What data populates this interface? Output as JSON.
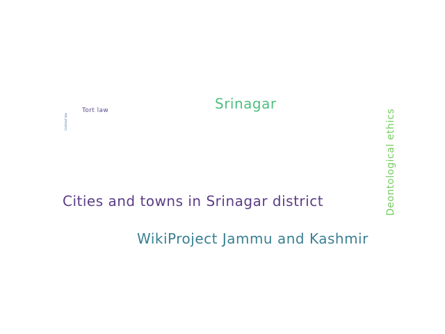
{
  "word_cloud": {
    "words": [
      {
        "text": "Cities and towns in Srinagar district",
        "color": "#5b3d85"
      },
      {
        "text": "WikiProject Jammu and Kashmir",
        "color": "#3a7f92"
      },
      {
        "text": "Srinagar",
        "color": "#4dbf81"
      },
      {
        "text": "Deontological ethics",
        "color": "#73cc5e",
        "orientation": "vertical"
      },
      {
        "text": "Tort law",
        "color": "#5b4a8f"
      },
      {
        "text": "Contract law",
        "color": "#4a72a8",
        "orientation": "vertical"
      }
    ]
  }
}
